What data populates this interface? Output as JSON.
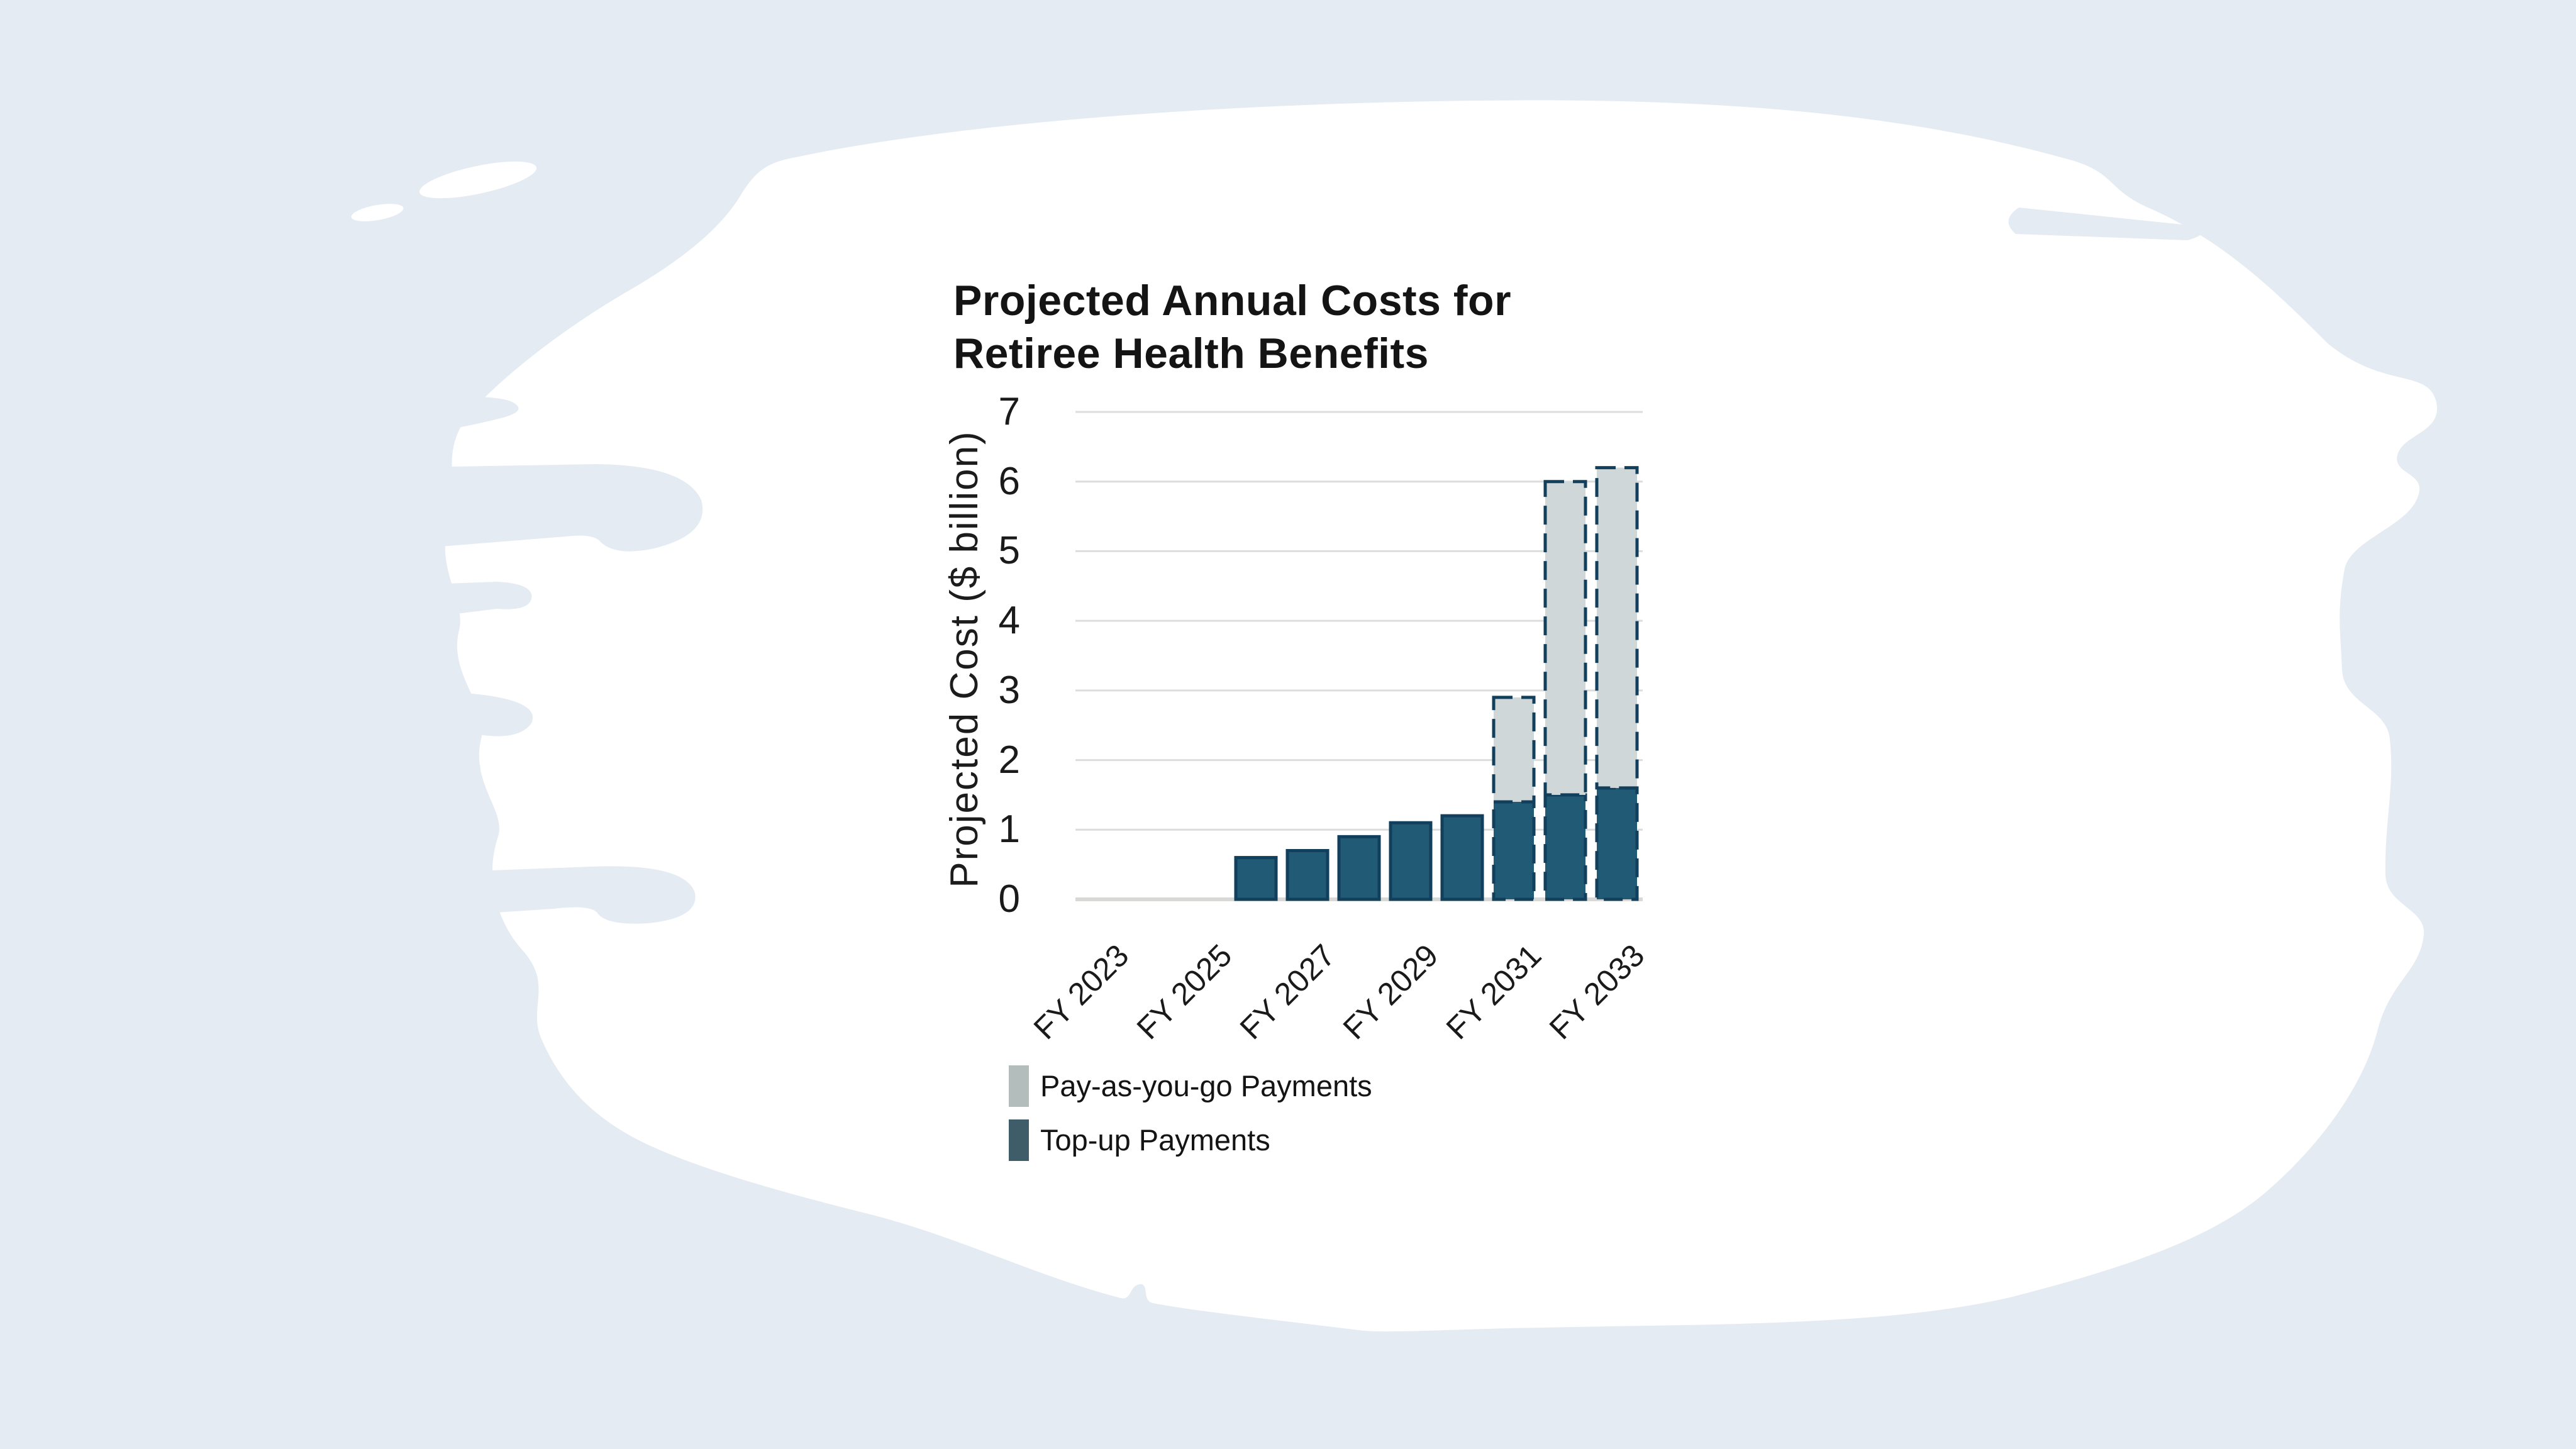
{
  "page": {
    "background_color": "#e4ebf2",
    "brush_color": "#ffffff"
  },
  "chart": {
    "title_lines": [
      "Projected Annual Costs for",
      "Retiree Health Benefits"
    ],
    "y_axis_label": "Projected Cost ($ billion)",
    "y_ticks": [
      "0",
      "1",
      "2",
      "3",
      "4",
      "5",
      "6",
      "7"
    ],
    "x_ticks": [
      "FY 2023",
      "FY 2025",
      "FY 2027",
      "FY 2029",
      "FY 2031",
      "FY 2033"
    ],
    "legend": [
      {
        "label": "Pay-as-you-go Payments",
        "swatch_color": "#b3bdbb"
      },
      {
        "label": "Top-up Payments",
        "swatch_color": "#3f5d68"
      }
    ],
    "grid_color": "#dcdddd",
    "axis_line_color": "#d8d8d6",
    "text_color": "#1a1a1a"
  },
  "chart_data": {
    "type": "bar",
    "stacked": true,
    "title": "Projected Annual Costs for Retiree Health Benefits",
    "xlabel": "",
    "ylabel": "Projected Cost ($ billion)",
    "ylim": [
      0,
      7
    ],
    "y_tick_step": 1,
    "grid": "horizontal",
    "legend_position": "bottom-left",
    "categories": [
      "FY 2023",
      "FY 2024",
      "FY 2025",
      "FY 2026",
      "FY 2027",
      "FY 2028",
      "FY 2029",
      "FY 2030",
      "FY 2031",
      "FY 2032",
      "FY 2033"
    ],
    "x_tick_labels_shown": [
      "FY 2023",
      "FY 2025",
      "FY 2027",
      "FY 2029",
      "FY 2031",
      "FY 2033"
    ],
    "series": [
      {
        "name": "Top-up Payments",
        "color": "#215a74",
        "stroke_color": "#123f5c",
        "outline_style": "solid",
        "values": [
          0,
          0,
          0,
          0.6,
          0.7,
          0.9,
          1.1,
          1.2,
          1.4,
          1.5,
          1.6
        ]
      },
      {
        "name": "Pay-as-you-go Payments",
        "color": "#cfd7d9",
        "stroke_color": "#123f5c",
        "outline_style": "dashed",
        "values": [
          0,
          0,
          0,
          0,
          0,
          0,
          0,
          0,
          1.5,
          4.5,
          4.6
        ]
      }
    ],
    "stacked_totals": [
      0,
      0,
      0,
      0.6,
      0.7,
      0.9,
      1.1,
      1.2,
      2.9,
      6.0,
      6.2
    ]
  }
}
